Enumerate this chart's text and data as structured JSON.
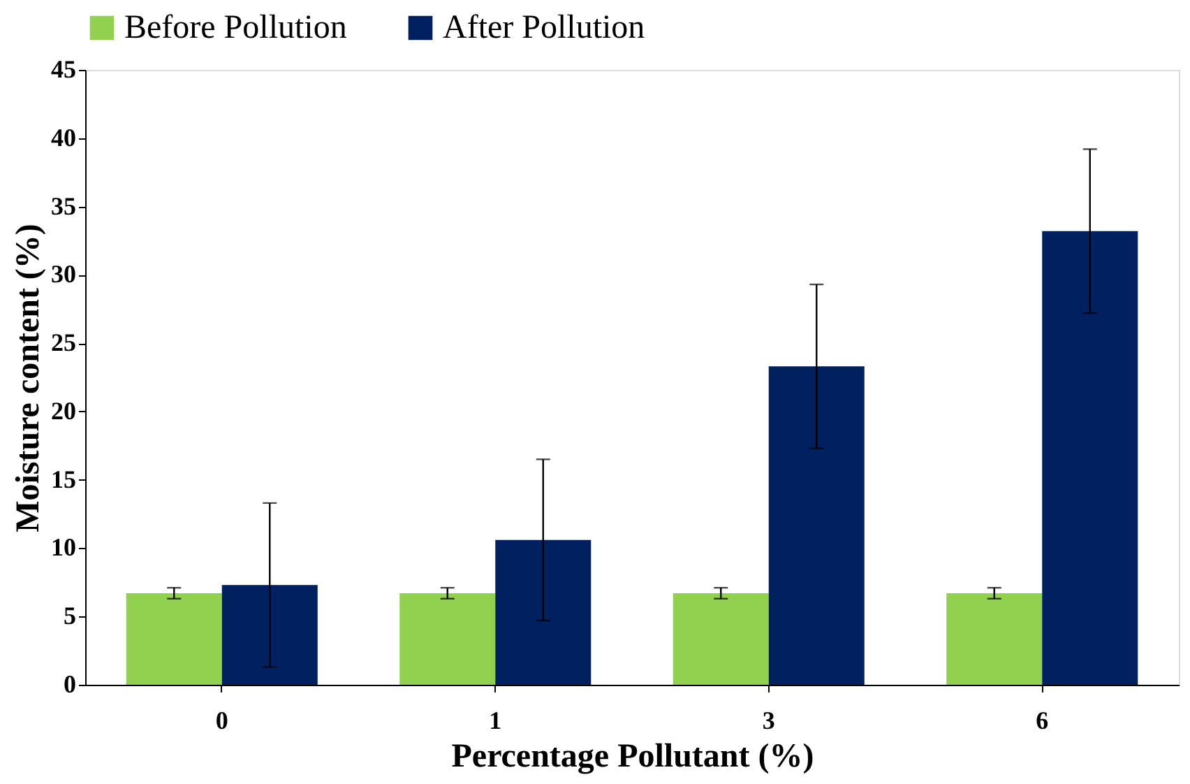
{
  "chart_data": {
    "type": "bar",
    "xlabel": "Percentage Pollutant (%)",
    "ylabel": "Moisture content (%)",
    "categories": [
      "0",
      "1",
      "3",
      "6"
    ],
    "series": [
      {
        "name": "Before Pollution",
        "color": "#92d050",
        "values": [
          6.7,
          6.7,
          6.7,
          6.7
        ],
        "errors": [
          0.4,
          0.4,
          0.4,
          0.4
        ]
      },
      {
        "name": "After Pollution",
        "color": "#002060",
        "values": [
          7.3,
          10.6,
          23.3,
          33.2
        ],
        "errors": [
          6,
          5.9,
          6,
          6
        ]
      }
    ],
    "ylim": [
      0,
      45
    ],
    "yticks": [
      0,
      5,
      10,
      15,
      20,
      25,
      30,
      35,
      40,
      45
    ],
    "grid": false,
    "legend": "top"
  }
}
